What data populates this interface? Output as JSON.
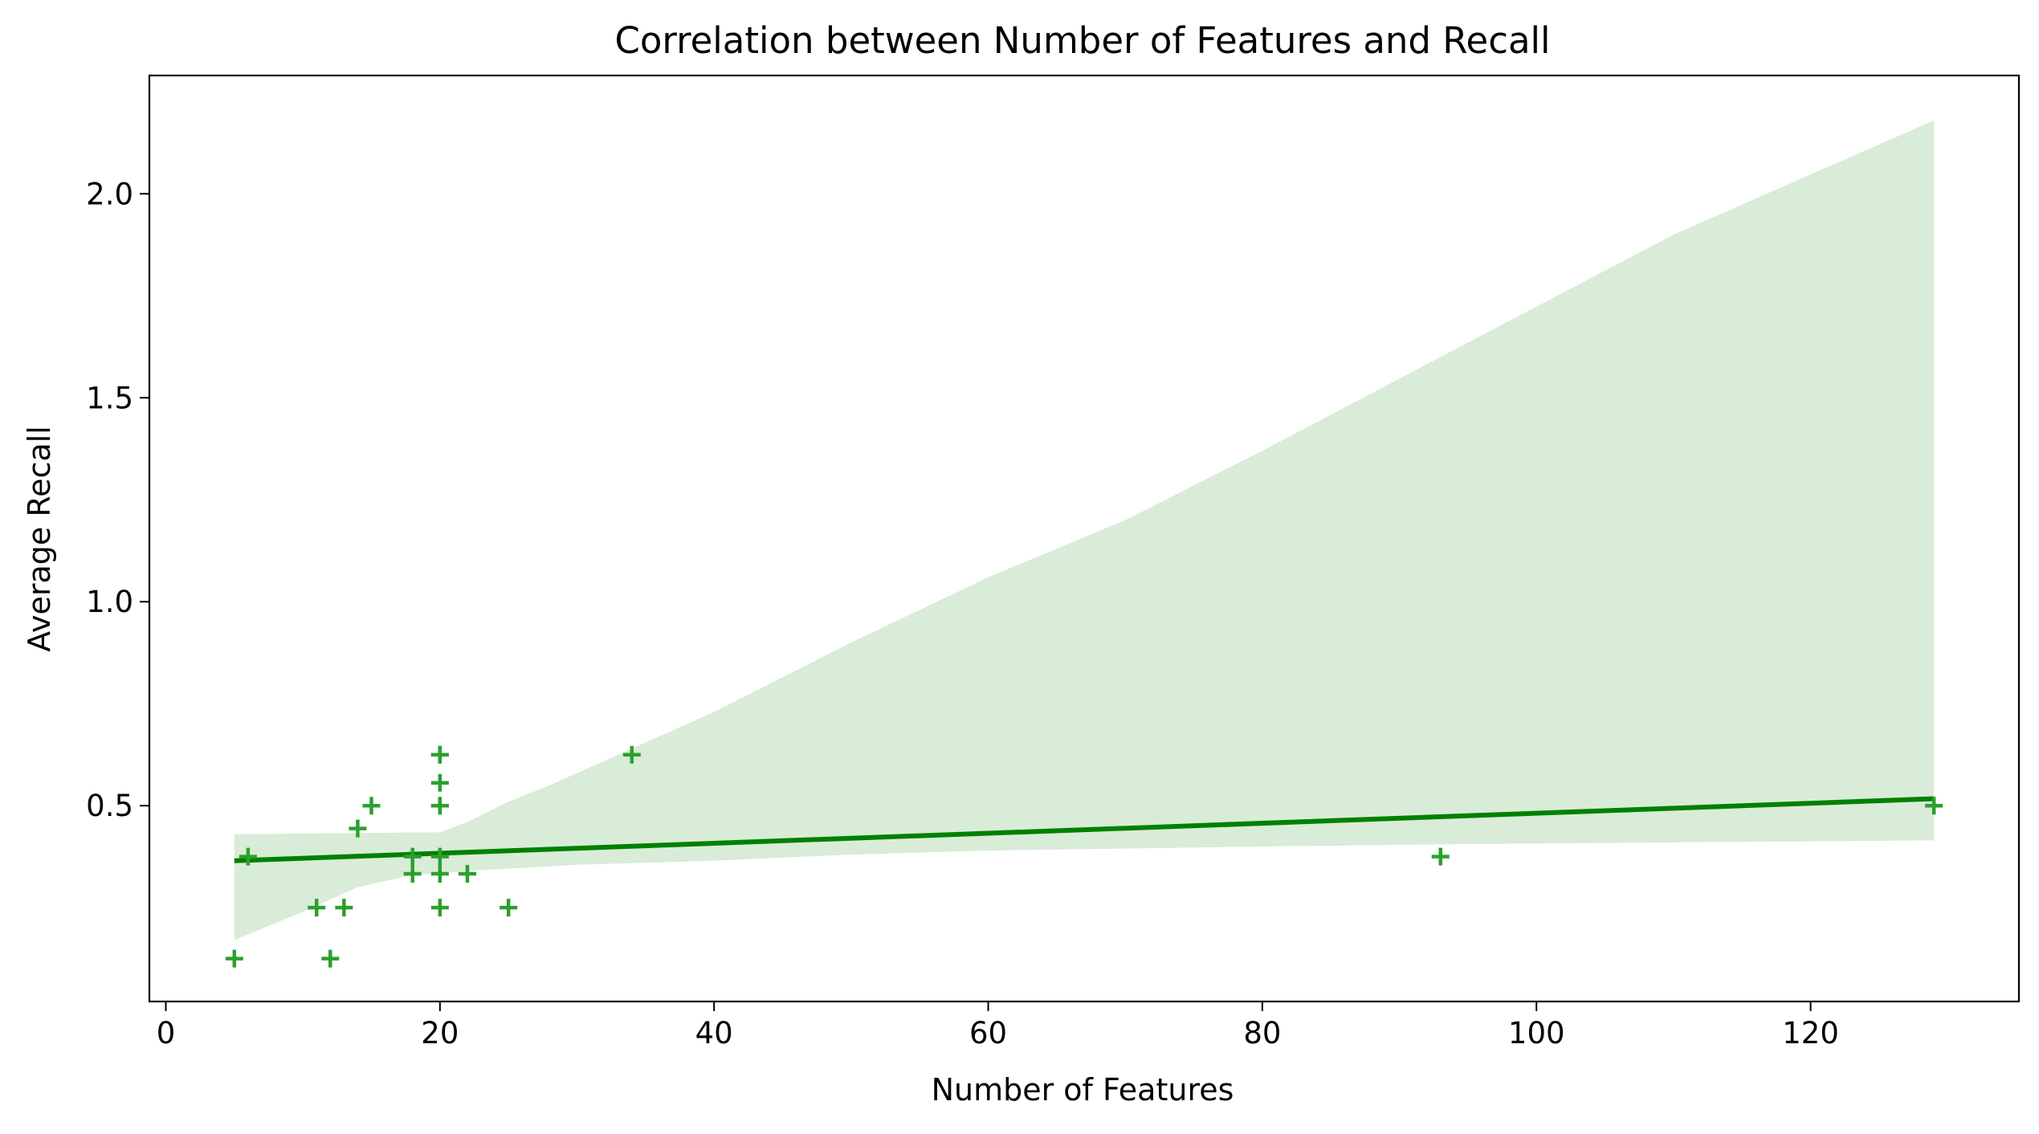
{
  "chart_data": {
    "type": "scatter",
    "title": "Correlation between Number of Features and Recall",
    "xlabel": "Number of Features",
    "ylabel": "Average Recall",
    "xlim": [
      -1.2,
      135.2
    ],
    "ylim": [
      0.02,
      2.29
    ],
    "x_ticks": [
      0,
      20,
      40,
      60,
      80,
      100,
      120
    ],
    "y_ticks": [
      0.5,
      1.0,
      1.5,
      2.0
    ],
    "x_tick_labels": [
      "0",
      "20",
      "40",
      "60",
      "80",
      "100",
      "120"
    ],
    "y_tick_labels": [
      "0.5",
      "1.0",
      "1.5",
      "2.0"
    ],
    "grid": false,
    "legend": "none",
    "colors": {
      "marker": "#2ca02c",
      "line": "#008000",
      "band": "#d9ecd8"
    },
    "marker_style": "plus",
    "series": [
      {
        "points": [
          {
            "x": 5,
            "y": 0.125
          },
          {
            "x": 6,
            "y": 0.375
          },
          {
            "x": 11,
            "y": 0.25
          },
          {
            "x": 12,
            "y": 0.125
          },
          {
            "x": 13,
            "y": 0.25
          },
          {
            "x": 14,
            "y": 0.444
          },
          {
            "x": 15,
            "y": 0.5
          },
          {
            "x": 18,
            "y": 0.333
          },
          {
            "x": 18,
            "y": 0.375
          },
          {
            "x": 20,
            "y": 0.25
          },
          {
            "x": 20,
            "y": 0.333
          },
          {
            "x": 20,
            "y": 0.375
          },
          {
            "x": 20,
            "y": 0.5
          },
          {
            "x": 20,
            "y": 0.5
          },
          {
            "x": 20,
            "y": 0.556
          },
          {
            "x": 20,
            "y": 0.625
          },
          {
            "x": 20,
            "y": 0.625
          },
          {
            "x": 22,
            "y": 0.333
          },
          {
            "x": 25,
            "y": 0.25
          },
          {
            "x": 34,
            "y": 0.625
          },
          {
            "x": 93,
            "y": 0.375
          },
          {
            "x": 129,
            "y": 0.5
          }
        ]
      }
    ],
    "regression_line": {
      "x": [
        5,
        129
      ],
      "y": [
        0.365,
        0.517
      ]
    },
    "confidence_band": {
      "upper": [
        {
          "x": 5,
          "y": 0.43
        },
        {
          "x": 20,
          "y": 0.435
        },
        {
          "x": 22,
          "y": 0.46
        },
        {
          "x": 25,
          "y": 0.51
        },
        {
          "x": 28,
          "y": 0.55
        },
        {
          "x": 34,
          "y": 0.64
        },
        {
          "x": 40,
          "y": 0.73
        },
        {
          "x": 50,
          "y": 0.9
        },
        {
          "x": 60,
          "y": 1.06
        },
        {
          "x": 70,
          "y": 1.2
        },
        {
          "x": 80,
          "y": 1.37
        },
        {
          "x": 93,
          "y": 1.6
        },
        {
          "x": 110,
          "y": 1.9
        },
        {
          "x": 129,
          "y": 2.18
        }
      ],
      "lower": [
        {
          "x": 5,
          "y": 0.17
        },
        {
          "x": 10,
          "y": 0.24
        },
        {
          "x": 14,
          "y": 0.3
        },
        {
          "x": 18,
          "y": 0.33
        },
        {
          "x": 22,
          "y": 0.34
        },
        {
          "x": 30,
          "y": 0.355
        },
        {
          "x": 40,
          "y": 0.365
        },
        {
          "x": 50,
          "y": 0.38
        },
        {
          "x": 60,
          "y": 0.39
        },
        {
          "x": 80,
          "y": 0.4
        },
        {
          "x": 93,
          "y": 0.405
        },
        {
          "x": 110,
          "y": 0.41
        },
        {
          "x": 129,
          "y": 0.415
        }
      ]
    }
  }
}
